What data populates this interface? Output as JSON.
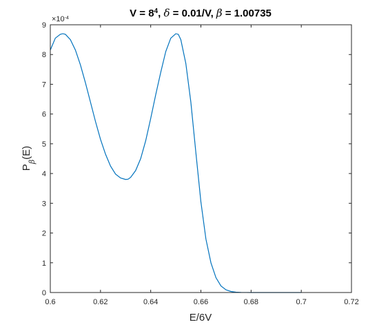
{
  "chart_data": {
    "type": "line",
    "title": "V = 8^4, δ = 0.01/V, β = 1.00735",
    "title_parts": {
      "prefix": "V = 8",
      "exponent": "4",
      "rest_1": ", ",
      "delta": "δ",
      "rest_2": " = 0.01/V, ",
      "beta": "β",
      "rest_3": " = 1.00735"
    },
    "xlabel": "E/6V",
    "ylabel": "Pβ(E)",
    "ylabel_parts": {
      "main": "P",
      "subscript": "β",
      "suffix": "(E)"
    },
    "y_multiplier": "×10^-4",
    "y_multiplier_parts": {
      "base": "×10",
      "exponent": "-4"
    },
    "xlim": [
      0.6,
      0.72
    ],
    "ylim": [
      0,
      9
    ],
    "x_ticks": [
      "0.6",
      "0.62",
      "0.64",
      "0.66",
      "0.68",
      "0.7",
      "0.72"
    ],
    "y_ticks": [
      "0",
      "1",
      "2",
      "3",
      "4",
      "5",
      "6",
      "7",
      "8",
      "9"
    ],
    "grid": false,
    "line_color": "#0072BD",
    "series": [
      {
        "x": [
          0.6,
          0.602,
          0.604,
          0.605,
          0.606,
          0.608,
          0.61,
          0.612,
          0.614,
          0.616,
          0.618,
          0.62,
          0.622,
          0.624,
          0.626,
          0.628,
          0.63,
          0.631,
          0.632,
          0.634,
          0.636,
          0.638,
          0.64,
          0.642,
          0.644,
          0.646,
          0.648,
          0.65,
          0.651,
          0.652,
          0.654,
          0.656,
          0.658,
          0.66,
          0.662,
          0.664,
          0.666,
          0.668,
          0.67,
          0.672,
          0.674,
          0.676,
          0.678,
          0.68,
          0.685,
          0.69,
          0.695,
          0.7
        ],
        "y": [
          8.15,
          8.55,
          8.68,
          8.7,
          8.68,
          8.5,
          8.15,
          7.65,
          7.05,
          6.4,
          5.75,
          5.15,
          4.65,
          4.25,
          3.98,
          3.85,
          3.8,
          3.81,
          3.87,
          4.1,
          4.5,
          5.1,
          5.85,
          6.65,
          7.4,
          8.1,
          8.55,
          8.7,
          8.68,
          8.5,
          7.7,
          6.4,
          4.7,
          3.05,
          1.8,
          1.0,
          0.5,
          0.22,
          0.09,
          0.035,
          0.012,
          0.004,
          0.001,
          0.0,
          0.0,
          0.0,
          0.0,
          0.0
        ]
      }
    ]
  }
}
